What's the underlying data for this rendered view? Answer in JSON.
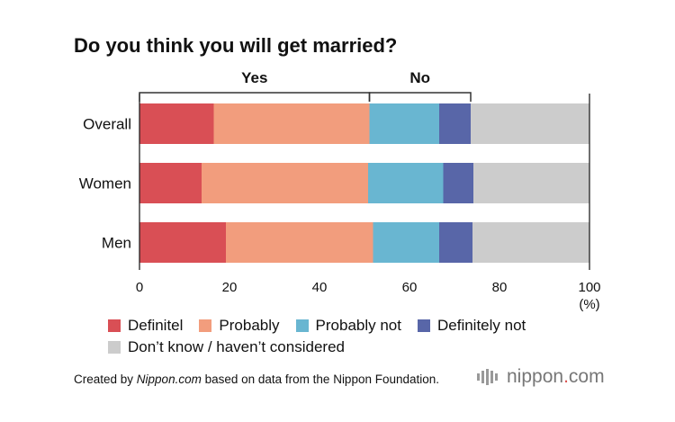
{
  "title": "Do you think you will get married?",
  "chart_data": {
    "type": "bar",
    "orientation": "horizontal",
    "stacked": true,
    "title": "Do you think you will get married?",
    "categories": [
      "Overall",
      "Women",
      "Men"
    ],
    "series": [
      {
        "name": "Definitel",
        "color": "#d94f55",
        "values": [
          16.5,
          13.8,
          19.2
        ]
      },
      {
        "name": "Probably",
        "color": "#f29d7d",
        "values": [
          34.6,
          37.0,
          32.7
        ]
      },
      {
        "name": "Probably not",
        "color": "#69b6d1",
        "values": [
          15.5,
          16.7,
          14.7
        ]
      },
      {
        "name": "Definitely not",
        "color": "#5866a8",
        "values": [
          7.0,
          6.7,
          7.4
        ]
      },
      {
        "name": "Don’t know / haven’t considered",
        "color": "#cccccc",
        "values": [
          26.4,
          25.8,
          26.0
        ]
      }
    ],
    "xlim": [
      0,
      100
    ],
    "xticks": [
      "0",
      "20",
      "40",
      "60",
      "80",
      "100"
    ],
    "unit_label": "(%)",
    "brackets": [
      {
        "label": "Yes",
        "from": 0,
        "to": 51.1
      },
      {
        "label": "No",
        "from": 51.1,
        "to": 73.6
      }
    ]
  },
  "legend": [
    {
      "label": "Definitel",
      "color": "#d94f55"
    },
    {
      "label": "Probably",
      "color": "#f29d7d"
    },
    {
      "label": "Probably not",
      "color": "#69b6d1"
    },
    {
      "label": "Definitely not",
      "color": "#5866a8"
    },
    {
      "label": "Don’t know / haven’t considered",
      "color": "#cccccc"
    }
  ],
  "footer": {
    "prefix": "Created by ",
    "site": "Nippon.com",
    "suffix": " based on data from the Nippon Foundation."
  },
  "logo": {
    "name": "nippon",
    "dot": ".",
    "tld": "com"
  }
}
